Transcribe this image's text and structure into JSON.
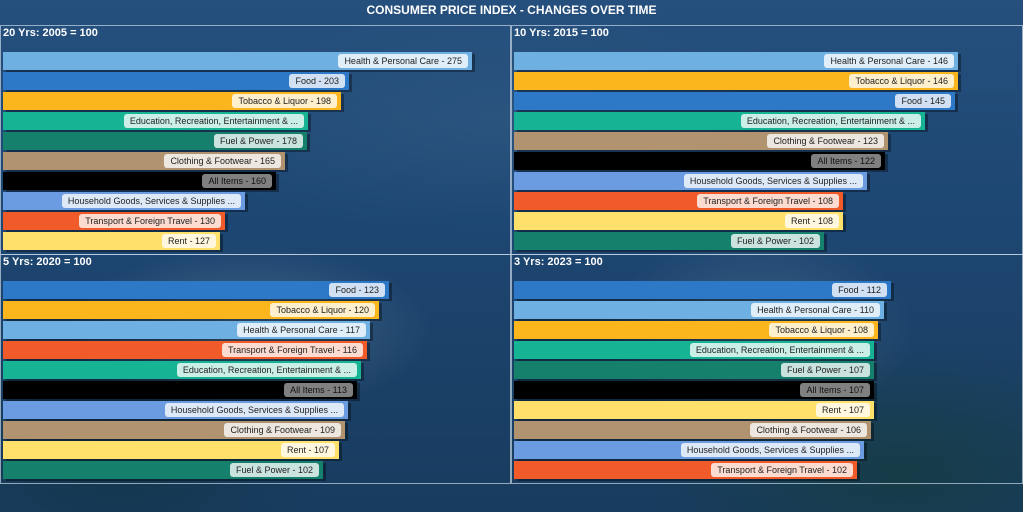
{
  "header": {
    "title": "CONSUMER PRICE INDEX - CHANGES OVER TIME"
  },
  "colors": {
    "Health & Personal Care": "#6fb0e3",
    "Food": "#2d79c7",
    "Tobacco & Liquor": "#fbb61d",
    "Education, Recreation, Entertainment & ...": "#16b394",
    "Fuel & Power": "#15806c",
    "Clothing & Footwear": "#b2936f",
    "All Items": "#000000",
    "Household Goods, Services & Supplies ...": "#6b9be0",
    "Transport & Foreign Travel": "#f15a29",
    "Rent": "#ffe06b"
  },
  "chart_data": [
    {
      "type": "bar",
      "title": "20 Yrs: 2005 = 100",
      "xlim": [
        0,
        296
      ],
      "categories": [
        "Health & Personal Care",
        "Food",
        "Tobacco & Liquor",
        "Education, Recreation, Entertainment & ...",
        "Fuel & Power",
        "Clothing & Footwear",
        "All Items",
        "Household Goods, Services & Supplies ...",
        "Transport & Foreign Travel",
        "Rent"
      ],
      "labels": [
        "Health & Personal Care - 275",
        "Food - 203",
        "Tobacco & Liquor - 198",
        "Education, Recreation, Entertainment & ...",
        "Fuel & Power - 178",
        "Clothing & Footwear - 165",
        "All Items - 160",
        "Household Goods, Services & Supplies ...",
        "Transport & Foreign Travel - 130",
        "Rent - 127"
      ],
      "values": [
        275,
        203,
        198,
        179,
        178,
        165,
        160,
        142,
        130,
        127
      ]
    },
    {
      "type": "bar",
      "title": "10 Yrs: 2015 = 100",
      "xlim": [
        0,
        166
      ],
      "categories": [
        "Health & Personal Care",
        "Tobacco & Liquor",
        "Food",
        "Education, Recreation, Entertainment & ...",
        "Clothing & Footwear",
        "All Items",
        "Household Goods, Services & Supplies ...",
        "Transport & Foreign Travel",
        "Rent",
        "Fuel & Power"
      ],
      "labels": [
        "Health & Personal Care - 146",
        "Tobacco & Liquor - 146",
        "Food - 145",
        "Education, Recreation, Entertainment & ...",
        "Clothing & Footwear - 123",
        "All Items - 122",
        "Household Goods, Services & Supplies ...",
        "Transport & Foreign Travel - 108",
        "Rent - 108",
        "Fuel & Power - 102"
      ],
      "values": [
        146,
        146,
        145,
        135,
        123,
        122,
        116,
        108,
        108,
        102
      ]
    },
    {
      "type": "bar",
      "title": "5 Yrs: 2020 = 100",
      "xlim": [
        0,
        161
      ],
      "categories": [
        "Food",
        "Tobacco & Liquor",
        "Health & Personal Care",
        "Transport & Foreign Travel",
        "Education, Recreation, Entertainment & ...",
        "All Items",
        "Household Goods, Services & Supplies ...",
        "Clothing & Footwear",
        "Rent",
        "Fuel & Power"
      ],
      "labels": [
        "Food - 123",
        "Tobacco & Liquor - 120",
        "Health & Personal Care - 117",
        "Transport & Foreign Travel - 116",
        "Education, Recreation, Entertainment & ...",
        "All Items - 113",
        "Household Goods, Services & Supplies ...",
        "Clothing & Footwear - 109",
        "Rent - 107",
        "Fuel & Power - 102"
      ],
      "values": [
        123,
        120,
        117,
        116,
        114,
        113,
        110,
        109,
        107,
        102
      ]
    },
    {
      "type": "bar",
      "title": "3 Yrs: 2023 = 100",
      "xlim": [
        0,
        150
      ],
      "categories": [
        "Food",
        "Health & Personal Care",
        "Tobacco & Liquor",
        "Education, Recreation, Entertainment & ...",
        "Fuel & Power",
        "All Items",
        "Rent",
        "Clothing & Footwear",
        "Household Goods, Services & Supplies ...",
        "Transport & Foreign Travel"
      ],
      "labels": [
        "Food - 112",
        "Health & Personal Care - 110",
        "Tobacco & Liquor - 108",
        "Education, Recreation, Entertainment & ...",
        "Fuel & Power - 107",
        "All Items - 107",
        "Rent - 107",
        "Clothing & Footwear - 106",
        "Household Goods, Services & Supplies ...",
        "Transport & Foreign Travel - 102"
      ],
      "values": [
        112,
        110,
        108,
        107,
        107,
        107,
        107,
        106,
        104,
        102
      ]
    }
  ]
}
